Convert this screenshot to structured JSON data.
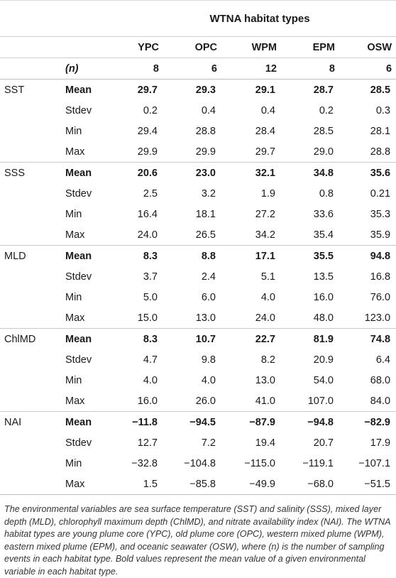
{
  "table": {
    "group_header": "WTNA habitat types",
    "columns": [
      "YPC",
      "OPC",
      "WPM",
      "EPM",
      "OSW"
    ],
    "n_label": "(n)",
    "n_values": [
      "8",
      "6",
      "12",
      "8",
      "6"
    ],
    "variables": [
      {
        "name": "SST",
        "rows": [
          {
            "stat": "Mean",
            "values": [
              "29.7",
              "29.3",
              "29.1",
              "28.7",
              "28.5"
            ]
          },
          {
            "stat": "Stdev",
            "values": [
              "0.2",
              "0.4",
              "0.4",
              "0.2",
              "0.3"
            ]
          },
          {
            "stat": "Min",
            "values": [
              "29.4",
              "28.8",
              "28.4",
              "28.5",
              "28.1"
            ]
          },
          {
            "stat": "Max",
            "values": [
              "29.9",
              "29.9",
              "29.7",
              "29.0",
              "28.8"
            ]
          }
        ]
      },
      {
        "name": "SSS",
        "rows": [
          {
            "stat": "Mean",
            "values": [
              "20.6",
              "23.0",
              "32.1",
              "34.8",
              "35.6"
            ]
          },
          {
            "stat": "Stdev",
            "values": [
              "2.5",
              "3.2",
              "1.9",
              "0.8",
              "0.21"
            ]
          },
          {
            "stat": "Min",
            "values": [
              "16.4",
              "18.1",
              "27.2",
              "33.6",
              "35.3"
            ]
          },
          {
            "stat": "Max",
            "values": [
              "24.0",
              "26.5",
              "34.2",
              "35.4",
              "35.9"
            ]
          }
        ]
      },
      {
        "name": "MLD",
        "rows": [
          {
            "stat": "Mean",
            "values": [
              "8.3",
              "8.8",
              "17.1",
              "35.5",
              "94.8"
            ]
          },
          {
            "stat": "Stdev",
            "values": [
              "3.7",
              "2.4",
              "5.1",
              "13.5",
              "16.8"
            ]
          },
          {
            "stat": "Min",
            "values": [
              "5.0",
              "6.0",
              "4.0",
              "16.0",
              "76.0"
            ]
          },
          {
            "stat": "Max",
            "values": [
              "15.0",
              "13.0",
              "24.0",
              "48.0",
              "123.0"
            ]
          }
        ]
      },
      {
        "name": "ChlMD",
        "rows": [
          {
            "stat": "Mean",
            "values": [
              "8.3",
              "10.7",
              "22.7",
              "81.9",
              "74.8"
            ]
          },
          {
            "stat": "Stdev",
            "values": [
              "4.7",
              "9.8",
              "8.2",
              "20.9",
              "6.4"
            ]
          },
          {
            "stat": "Min",
            "values": [
              "4.0",
              "4.0",
              "13.0",
              "54.0",
              "68.0"
            ]
          },
          {
            "stat": "Max",
            "values": [
              "16.0",
              "26.0",
              "41.0",
              "107.0",
              "84.0"
            ]
          }
        ]
      },
      {
        "name": "NAI",
        "rows": [
          {
            "stat": "Mean",
            "values": [
              "−11.8",
              "−94.5",
              "−87.9",
              "−94.8",
              "−82.9"
            ]
          },
          {
            "stat": "Stdev",
            "values": [
              "12.7",
              "7.2",
              "19.4",
              "20.7",
              "17.9"
            ]
          },
          {
            "stat": "Min",
            "values": [
              "−32.8",
              "−104.8",
              "−115.0",
              "−119.1",
              "−107.1"
            ]
          },
          {
            "stat": "Max",
            "values": [
              "1.5",
              "−85.8",
              "−49.9",
              "−68.0",
              "−51.5"
            ]
          }
        ]
      }
    ]
  },
  "caption": "The environmental variables are sea surface temperature (SST) and salinity (SSS), mixed layer depth (MLD), chlorophyll maximum depth (ChlMD), and nitrate availability index (NAI). The WTNA habitat types are young plume core (YPC), old plume core (OPC), western mixed plume (WPM), eastern mixed plume (EPM), and oceanic seawater (OSW), where (n) is the number of sampling events in each habitat type. Bold values represent the mean value of a given environmental variable in each habitat type."
}
